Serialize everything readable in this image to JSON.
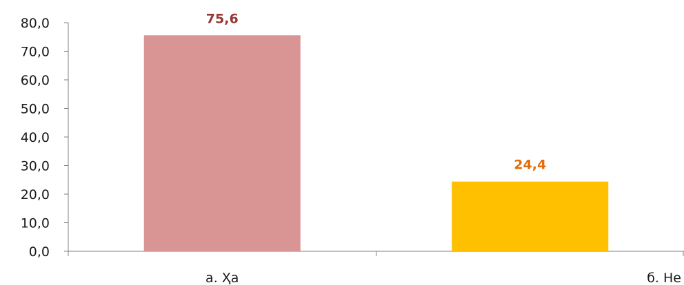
{
  "chart_data": {
    "type": "bar",
    "categories": [
      "а. Ҳа",
      "б. Не"
    ],
    "values": [
      75.6,
      24.4
    ],
    "value_labels": [
      "75,6",
      "24,4"
    ],
    "y_tick_labels": [
      "0,0",
      "10,0",
      "20,0",
      "30,0",
      "40,0",
      "50,0",
      "60,0",
      "70,0",
      "80,0"
    ],
    "ylim": [
      0,
      80
    ],
    "ytick_step": 10,
    "grid": false,
    "bar_colors": [
      "#d99594",
      "#ffc000"
    ],
    "label_colors": [
      "#953735",
      "#e46c0a"
    ],
    "title": "",
    "xlabel": "",
    "ylabel": ""
  }
}
